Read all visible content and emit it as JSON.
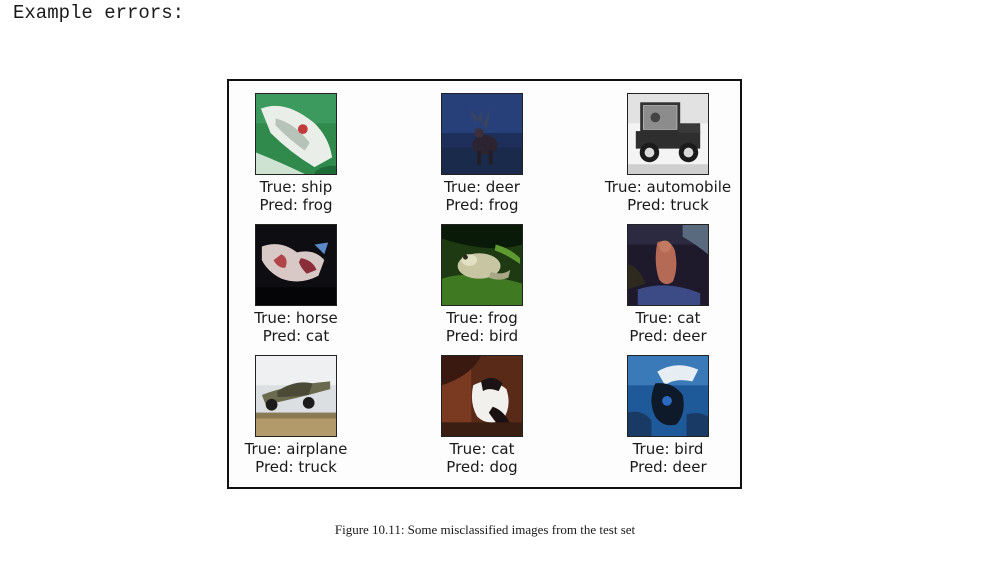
{
  "heading": "Example errors:",
  "figure_caption": "Figure 10.11: Some misclassified images from the test set",
  "samples": [
    {
      "true": "True: ship",
      "pred": "Pred: frog",
      "image": "ship-image"
    },
    {
      "true": "True: deer",
      "pred": "Pred: frog",
      "image": "deer-image"
    },
    {
      "true": "True: automobile",
      "pred": "Pred: truck",
      "image": "automobile-image"
    },
    {
      "true": "True: horse",
      "pred": "Pred: cat",
      "image": "horse-image"
    },
    {
      "true": "True: frog",
      "pred": "Pred: bird",
      "image": "frog-image"
    },
    {
      "true": "True: cat",
      "pred": "Pred: deer",
      "image": "cat-image"
    },
    {
      "true": "True: airplane",
      "pred": "Pred: truck",
      "image": "airplane-image"
    },
    {
      "true": "True: cat",
      "pred": "Pred: dog",
      "image": "cat-image"
    },
    {
      "true": "True: bird",
      "pred": "Pred: deer",
      "image": "bird-image"
    }
  ]
}
